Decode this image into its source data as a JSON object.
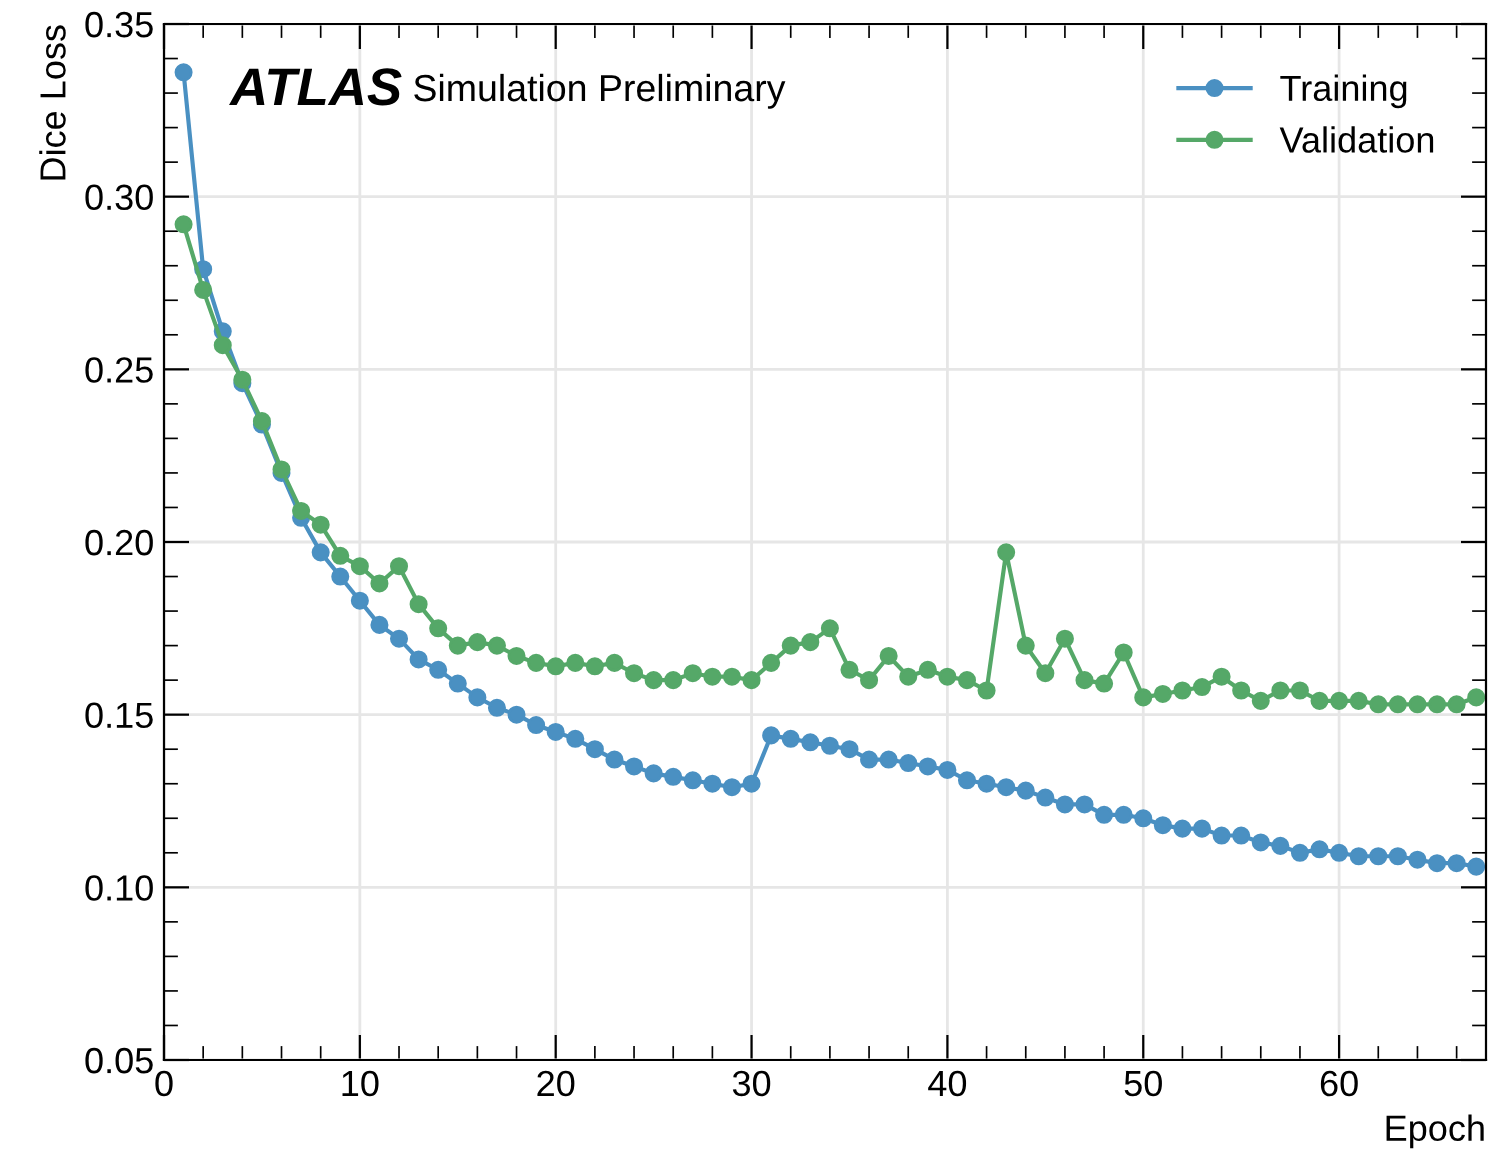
{
  "chart_data": {
    "type": "line",
    "xlabel": "Epoch",
    "ylabel": "Dice Loss",
    "annotations": [
      "ATLAS",
      "Simulation Preliminary"
    ],
    "x": [
      1,
      2,
      3,
      4,
      5,
      6,
      7,
      8,
      9,
      10,
      11,
      12,
      13,
      14,
      15,
      16,
      17,
      18,
      19,
      20,
      21,
      22,
      23,
      24,
      25,
      26,
      27,
      28,
      29,
      30,
      31,
      32,
      33,
      34,
      35,
      36,
      37,
      38,
      39,
      40,
      41,
      42,
      43,
      44,
      45,
      46,
      47,
      48,
      49,
      50,
      51,
      52,
      53,
      54,
      55,
      56,
      57,
      58,
      59,
      60,
      61,
      62,
      63,
      64,
      65,
      66,
      67
    ],
    "series": [
      {
        "name": "Training",
        "color": "#4a90c2",
        "values": [
          0.336,
          0.279,
          0.261,
          0.246,
          0.234,
          0.22,
          0.207,
          0.197,
          0.19,
          0.183,
          0.176,
          0.172,
          0.166,
          0.163,
          0.159,
          0.155,
          0.152,
          0.15,
          0.147,
          0.145,
          0.143,
          0.14,
          0.137,
          0.135,
          0.133,
          0.132,
          0.131,
          0.13,
          0.129,
          0.13,
          0.144,
          0.143,
          0.142,
          0.141,
          0.14,
          0.137,
          0.137,
          0.136,
          0.135,
          0.134,
          0.131,
          0.13,
          0.129,
          0.128,
          0.126,
          0.124,
          0.124,
          0.121,
          0.121,
          0.12,
          0.118,
          0.117,
          0.117,
          0.115,
          0.115,
          0.113,
          0.112,
          0.11,
          0.111,
          0.11,
          0.109,
          0.109,
          0.109,
          0.108,
          0.107,
          0.107,
          0.106
        ]
      },
      {
        "name": "Validation",
        "color": "#55a868",
        "values": [
          0.292,
          0.273,
          0.257,
          0.247,
          0.235,
          0.221,
          0.209,
          0.205,
          0.196,
          0.193,
          0.188,
          0.193,
          0.182,
          0.175,
          0.17,
          0.171,
          0.17,
          0.167,
          0.165,
          0.164,
          0.165,
          0.164,
          0.165,
          0.162,
          0.16,
          0.16,
          0.162,
          0.161,
          0.161,
          0.16,
          0.165,
          0.17,
          0.171,
          0.175,
          0.163,
          0.16,
          0.167,
          0.161,
          0.163,
          0.161,
          0.16,
          0.157,
          0.197,
          0.17,
          0.162,
          0.172,
          0.16,
          0.159,
          0.168,
          0.155,
          0.156,
          0.157,
          0.158,
          0.161,
          0.157,
          0.154,
          0.157,
          0.157,
          0.154,
          0.154,
          0.154,
          0.153,
          0.153,
          0.153,
          0.153,
          0.153,
          0.155
        ]
      }
    ],
    "xlim": [
      0,
      67.5
    ],
    "xticks": [
      0,
      10,
      20,
      30,
      40,
      50,
      60
    ],
    "ylim": [
      0.05,
      0.35
    ],
    "yticks": [
      {
        "value": 0.05,
        "label": "0.05"
      },
      {
        "value": 0.1,
        "label": "0.10"
      },
      {
        "value": 0.15,
        "label": "0.15"
      },
      {
        "value": 0.2,
        "label": "0.20"
      },
      {
        "value": 0.25,
        "label": "0.25"
      },
      {
        "value": 0.3,
        "label": "0.30"
      },
      {
        "value": 0.35,
        "label": "0.35"
      }
    ],
    "grid": true,
    "legend": "top right",
    "marker": "circle",
    "line_style": "solid"
  }
}
